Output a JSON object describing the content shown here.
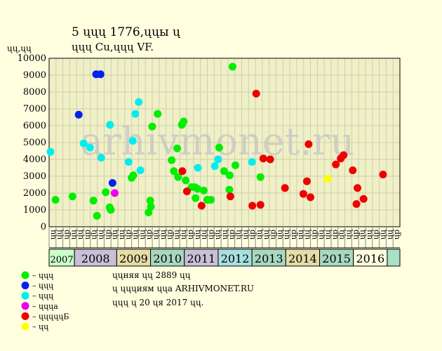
{
  "title_line1": "5 ųųų 1776,ųųы ų",
  "title_line2": "ųųų Cu,ųųų VF.",
  "y_unit": "ųų,ųų",
  "footer": {
    "line1": "ųųняя ųų 2889 ųų",
    "line2": "ų ųųųиям ųųа ARHIVMONET.RU",
    "line3": "ųųų ų 20 ųя 2017 ųų."
  },
  "watermark": "arhivmonet.ru",
  "colors": {
    "background": "#ffffe0",
    "plot_area": "#f0f0c8",
    "grid": "#d0d0a8",
    "watermark": "#c4c4c4"
  },
  "chart_data": {
    "type": "scatter",
    "title": "5 ųųų 1776,ųųы ų ųųų Cu,ųųų VF.",
    "ylabel": "ųų,ųų",
    "ylim": [
      0,
      10000
    ],
    "yticks": [
      0,
      1000,
      2000,
      3000,
      4000,
      5000,
      6000,
      7000,
      8000,
      9000,
      10000
    ],
    "grid": true,
    "legend_placement": "bottom-left",
    "x_month_labels": [
      "ųų",
      "ųų",
      "ųр",
      "ųų",
      "ųų",
      "ųр",
      "ųų",
      "ųų",
      "ųр",
      "ųų",
      "ųų",
      "ųр",
      "ųų",
      "ųų",
      "ųр",
      "ųų",
      "ųų",
      "ųр",
      "ųų",
      "ųų",
      "ųр",
      "ųų",
      "ųų",
      "ųр",
      "ųų",
      "ųų",
      "ųр",
      "ųų",
      "ųų",
      "ųр",
      "ųų",
      "ųų",
      "ųр",
      "ųų",
      "ųų",
      "ųр",
      "ųų",
      "ųų",
      "ųр",
      "ųų",
      "ųų",
      "ųр",
      "ųų",
      "ųų",
      "ųр",
      "ųų",
      "ųų",
      "ųр",
      "ųų",
      "ųų",
      "ųр"
    ],
    "years": [
      {
        "label": "2007",
        "start": 0,
        "end": 1.5,
        "color": "#ccffcc"
      },
      {
        "label": "2008",
        "start": 1.5,
        "end": 4,
        "color": "#c8c0d8"
      },
      {
        "label": "2009",
        "start": 4,
        "end": 6,
        "color": "#e6dca6"
      },
      {
        "label": "2010",
        "start": 6,
        "end": 8,
        "color": "#a8d8c0"
      },
      {
        "label": "2011",
        "start": 8,
        "end": 10,
        "color": "#c8c0d8"
      },
      {
        "label": "2012",
        "start": 10,
        "end": 12,
        "color": "#a8e0e0"
      },
      {
        "label": "2013",
        "start": 12,
        "end": 14,
        "color": "#a8d8c0"
      },
      {
        "label": "2014",
        "start": 14,
        "end": 16,
        "color": "#e6dca6"
      },
      {
        "label": "2015",
        "start": 16,
        "end": 18,
        "color": "#a8d8c0"
      },
      {
        "label": "2016",
        "start": 18,
        "end": 20,
        "color": "#ffffe0"
      },
      {
        "label": "",
        "start": 20,
        "end": 20.75,
        "color": "#a8e0c8"
      }
    ],
    "legend": [
      {
        "label": "– ųųų",
        "color": "#00ee00"
      },
      {
        "label": "– ųųų",
        "color": "#0022ee"
      },
      {
        "label": "– ųųų",
        "color": "#00eeee"
      },
      {
        "label": "– ųųųа",
        "color": "#ee00ee"
      },
      {
        "label": "– ųųųųųБ",
        "color": "#ee0000"
      },
      {
        "label": "– ųų",
        "color": "#ffff00"
      }
    ],
    "series": [
      {
        "name": "– ųųų",
        "color": "#00ee00",
        "points": [
          [
            0.38,
            1600
          ],
          [
            1.38,
            1800
          ],
          [
            2.62,
            1550
          ],
          [
            2.83,
            650
          ],
          [
            3.35,
            2050
          ],
          [
            3.58,
            1150
          ],
          [
            3.65,
            1000
          ],
          [
            4.88,
            2900
          ],
          [
            4.98,
            3050
          ],
          [
            5.88,
            850
          ],
          [
            5.98,
            1550
          ],
          [
            6.02,
            1200
          ],
          [
            6.1,
            5950
          ],
          [
            6.42,
            6700
          ],
          [
            7.25,
            3950
          ],
          [
            7.38,
            3300
          ],
          [
            7.58,
            4650
          ],
          [
            7.63,
            2950
          ],
          [
            7.85,
            6050
          ],
          [
            7.96,
            6250
          ],
          [
            8.08,
            2750
          ],
          [
            8.42,
            2350
          ],
          [
            8.62,
            2350
          ],
          [
            8.66,
            1700
          ],
          [
            8.78,
            2250
          ],
          [
            9.15,
            2150
          ],
          [
            9.35,
            1600
          ],
          [
            9.57,
            1600
          ],
          [
            10.06,
            4700
          ],
          [
            10.35,
            3300
          ],
          [
            10.66,
            2200
          ],
          [
            10.68,
            3050
          ],
          [
            10.85,
            9500
          ],
          [
            11.02,
            3650
          ],
          [
            12.5,
            2950
          ]
        ]
      },
      {
        "name": "– ųųų",
        "color": "#0022ee",
        "points": [
          [
            1.75,
            6650
          ],
          [
            2.78,
            9050
          ],
          [
            3.04,
            9050
          ],
          [
            3.75,
            2600
          ]
        ]
      },
      {
        "name": "– ųųų",
        "color": "#00eeee",
        "points": [
          [
            0.08,
            4450
          ],
          [
            2.04,
            4950
          ],
          [
            2.42,
            4700
          ],
          [
            3.08,
            4100
          ],
          [
            3.6,
            6050
          ],
          [
            4.7,
            3850
          ],
          [
            4.95,
            5100
          ],
          [
            5.1,
            6700
          ],
          [
            5.3,
            7400
          ],
          [
            5.4,
            3350
          ],
          [
            8.8,
            3500
          ],
          [
            9.8,
            3600
          ],
          [
            10.0,
            4000
          ],
          [
            12.0,
            3850
          ]
        ]
      },
      {
        "name": "– ųųųа",
        "color": "#ee00ee",
        "points": [
          [
            3.88,
            2000
          ]
        ]
      },
      {
        "name": "– ųųųųųБ",
        "color": "#ee0000",
        "points": [
          [
            7.88,
            3300
          ],
          [
            8.15,
            2100
          ],
          [
            9.02,
            1250
          ],
          [
            10.72,
            1800
          ],
          [
            12.02,
            1250
          ],
          [
            12.25,
            7900
          ],
          [
            12.5,
            1300
          ],
          [
            12.67,
            4050
          ],
          [
            13.08,
            4000
          ],
          [
            13.95,
            2300
          ],
          [
            15.04,
            1950
          ],
          [
            15.25,
            2700
          ],
          [
            15.35,
            4900
          ],
          [
            15.46,
            1750
          ],
          [
            16.96,
            3700
          ],
          [
            17.25,
            4050
          ],
          [
            17.42,
            4250
          ],
          [
            17.96,
            3350
          ],
          [
            18.18,
            1350
          ],
          [
            18.24,
            2300
          ],
          [
            18.6,
            1650
          ],
          [
            19.75,
            3100
          ]
        ]
      },
      {
        "name": "– ųų",
        "color": "#ffff00",
        "points": [
          [
            16.47,
            2850
          ]
        ]
      }
    ]
  }
}
